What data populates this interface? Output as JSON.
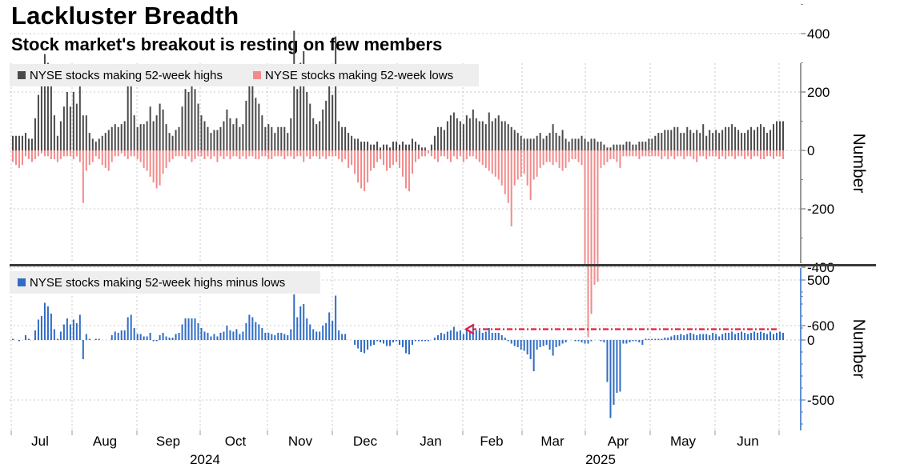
{
  "title": "Lackluster Breadth",
  "subtitle": "Stock market's breakout is resting on few members",
  "colors": {
    "highs": "#4a4a4a",
    "lows": "#f28b8b",
    "net": "#2f6cc4",
    "arrow": "#e8193c",
    "grid": "#c8c8c8",
    "divider": "#3a3a3a"
  },
  "x_axis": {
    "months": [
      "Jul",
      "Aug",
      "Sep",
      "Oct",
      "Nov",
      "Dec",
      "Jan",
      "Feb",
      "Mar",
      "Apr",
      "May",
      "Jun"
    ],
    "years": [
      "2024",
      "2025"
    ]
  },
  "chart_data": [
    {
      "type": "bar",
      "panel": "top",
      "ylabel": "Number",
      "ylim": [
        -700,
        600
      ],
      "yticks": [
        400,
        200,
        0,
        -200,
        -400,
        -600
      ],
      "legend_position": "top-left",
      "grid": true,
      "x_start": "2024-06-24",
      "x_end": "2025-06-27",
      "series": [
        {
          "name": "NYSE stocks making 52-week highs",
          "values": [
            50,
            50,
            50,
            50,
            60,
            40,
            40,
            110,
            190,
            230,
            330,
            300,
            250,
            120,
            50,
            100,
            150,
            200,
            150,
            200,
            160,
            250,
            120,
            120,
            60,
            40,
            30,
            40,
            50,
            60,
            70,
            80,
            90,
            80,
            90,
            100,
            220,
            230,
            120,
            80,
            90,
            90,
            100,
            150,
            100,
            120,
            160,
            140,
            90,
            60,
            50,
            70,
            80,
            150,
            210,
            200,
            220,
            210,
            160,
            120,
            100,
            80,
            60,
            70,
            70,
            80,
            100,
            140,
            110,
            90,
            110,
            80,
            90,
            170,
            230,
            220,
            180,
            160,
            120,
            80,
            90,
            80,
            60,
            80,
            80,
            80,
            60,
            110,
            410,
            210,
            300,
            340,
            200,
            160,
            110,
            90,
            100,
            140,
            170,
            250,
            190,
            390,
            100,
            80,
            80,
            60,
            50,
            40,
            40,
            30,
            30,
            30,
            20,
            20,
            30,
            10,
            20,
            20,
            10,
            30,
            30,
            20,
            30,
            20,
            20,
            40,
            30,
            20,
            10,
            10,
            0,
            20,
            50,
            80,
            80,
            70,
            100,
            120,
            130,
            110,
            100,
            90,
            120,
            110,
            140,
            110,
            100,
            100,
            90,
            130,
            100,
            110,
            120,
            100,
            100,
            90,
            80,
            70,
            60,
            50,
            40,
            40,
            40,
            40,
            50,
            60,
            40,
            50,
            60,
            90,
            60,
            50,
            70,
            40,
            30,
            40,
            40,
            40,
            50,
            40,
            30,
            40,
            40,
            30,
            30,
            20,
            10,
            10,
            20,
            20,
            20,
            20,
            30,
            30,
            20,
            20,
            30,
            30,
            30,
            40,
            40,
            50,
            60,
            60,
            70,
            70,
            70,
            80,
            80,
            60,
            60,
            80,
            70,
            60,
            70,
            60,
            90,
            50,
            70,
            60,
            70,
            60,
            70,
            80,
            80,
            90,
            80,
            70,
            60,
            60,
            70,
            80,
            70,
            80,
            90,
            80,
            60,
            70,
            90,
            100,
            100,
            100
          ]
        },
        {
          "name": "NYSE stocks making 52-week lows",
          "values": [
            -40,
            -50,
            -60,
            -50,
            -20,
            -30,
            -40,
            -30,
            -20,
            -10,
            -20,
            -20,
            -30,
            -30,
            -40,
            -30,
            -20,
            -20,
            -20,
            -30,
            -20,
            -40,
            -180,
            -70,
            -50,
            -40,
            -20,
            -30,
            -50,
            -60,
            -70,
            -40,
            -20,
            -20,
            -10,
            -20,
            -30,
            -20,
            -20,
            -30,
            -40,
            -60,
            -70,
            -90,
            -110,
            -130,
            -120,
            -80,
            -60,
            -40,
            -30,
            -20,
            -20,
            -20,
            -30,
            -20,
            -40,
            -30,
            -20,
            -20,
            -30,
            -20,
            -30,
            -20,
            -40,
            -20,
            -30,
            -20,
            -30,
            -20,
            -20,
            -30,
            -20,
            -30,
            -20,
            -20,
            -30,
            -30,
            -20,
            -20,
            -30,
            -30,
            -20,
            -20,
            -20,
            -30,
            -20,
            -20,
            -30,
            -20,
            -20,
            -40,
            -20,
            -30,
            -20,
            -20,
            -30,
            -20,
            -30,
            -20,
            -20,
            -20,
            -30,
            -40,
            -30,
            -60,
            -50,
            -80,
            -110,
            -130,
            -140,
            -110,
            -70,
            -60,
            -40,
            -30,
            -50,
            -70,
            -60,
            -50,
            -40,
            -60,
            -90,
            -130,
            -140,
            -80,
            -40,
            -30,
            -20,
            -20,
            -10,
            -20,
            -30,
            -40,
            -20,
            -20,
            -30,
            -40,
            -20,
            -30,
            -20,
            -40,
            -30,
            -20,
            -20,
            -30,
            -40,
            -50,
            -60,
            -70,
            -80,
            -90,
            -100,
            -120,
            -150,
            -180,
            -260,
            -120,
            -100,
            -90,
            -80,
            -120,
            -170,
            -100,
            -90,
            -60,
            -50,
            -40,
            -40,
            -50,
            -40,
            -60,
            -70,
            -60,
            -40,
            -30,
            -30,
            -40,
            -50,
            -390,
            -640,
            -560,
            -460,
            -450,
            -60,
            -50,
            -40,
            -30,
            -30,
            -40,
            -60,
            -20,
            -20,
            -20,
            -20,
            -20,
            -30,
            -20,
            -20,
            -20,
            -20,
            -20,
            -20,
            -30,
            -20,
            -30,
            -20,
            -30,
            -20,
            -20,
            -30,
            -20,
            -20,
            -30,
            -40,
            -20,
            -20,
            -30,
            -20,
            -20,
            -20,
            -30,
            -20,
            -30,
            -20,
            -20,
            -30,
            -20,
            -20,
            -30,
            -20,
            -30,
            -20,
            -20,
            -30,
            -30,
            -20,
            -20,
            -30,
            -20,
            -20,
            -30,
            -20,
            -20,
            -30,
            -10,
            -10
          ]
        }
      ]
    },
    {
      "type": "bar",
      "panel": "bottom",
      "ylabel": "Number",
      "ylim": [
        -750,
        550
      ],
      "yticks": [
        500,
        0,
        -500
      ],
      "legend_position": "top-left",
      "grid": true,
      "series": [
        {
          "name": "NYSE stocks making 52-week highs minus lows",
          "values": [
            10,
            0,
            -10,
            0,
            40,
            10,
            0,
            80,
            170,
            200,
            310,
            280,
            220,
            90,
            10,
            70,
            130,
            180,
            130,
            170,
            140,
            210,
            -160,
            50,
            10,
            0,
            10,
            10,
            0,
            0,
            0,
            40,
            70,
            60,
            80,
            80,
            190,
            210,
            100,
            50,
            50,
            30,
            30,
            60,
            -10,
            -10,
            40,
            60,
            30,
            20,
            20,
            50,
            60,
            130,
            180,
            180,
            180,
            180,
            140,
            100,
            70,
            60,
            30,
            50,
            30,
            60,
            70,
            120,
            80,
            70,
            90,
            50,
            70,
            140,
            210,
            190,
            150,
            130,
            100,
            60,
            60,
            50,
            40,
            60,
            60,
            50,
            40,
            90,
            380,
            190,
            280,
            300,
            180,
            130,
            90,
            70,
            70,
            120,
            140,
            230,
            160,
            370,
            80,
            50,
            50,
            0,
            0,
            -40,
            -70,
            -100,
            -110,
            -80,
            -50,
            -40,
            -10,
            -20,
            -30,
            -50,
            -50,
            -20,
            -10,
            -40,
            -60,
            -110,
            -120,
            -40,
            -10,
            -10,
            -10,
            -10,
            -10,
            0,
            20,
            40,
            60,
            50,
            70,
            80,
            110,
            70,
            80,
            50,
            100,
            70,
            120,
            80,
            80,
            60,
            70,
            100,
            60,
            60,
            60,
            40,
            20,
            -10,
            -30,
            -50,
            -60,
            -80,
            -90,
            -120,
            -160,
            -260,
            -80,
            -60,
            -50,
            -40,
            -80,
            -130,
            -60,
            -50,
            -30,
            -20,
            0,
            0,
            -10,
            -10,
            -20,
            -30,
            -30,
            -10,
            0,
            0,
            -10,
            -20,
            -350,
            -650,
            -540,
            -440,
            -430,
            -30,
            -30,
            -20,
            -10,
            -10,
            -20,
            -40,
            10,
            10,
            10,
            10,
            10,
            10,
            20,
            20,
            30,
            40,
            40,
            50,
            40,
            50,
            60,
            50,
            40,
            50,
            50,
            50,
            40,
            60,
            50,
            30,
            50,
            60,
            60,
            70,
            50,
            60,
            70,
            60,
            50,
            60,
            70,
            60,
            70,
            60,
            50,
            70,
            50,
            60,
            70,
            60,
            60,
            70,
            60,
            60,
            80,
            90,
            80,
            80,
            90,
            90
          ]
        }
      ],
      "annotations": [
        {
          "type": "arrow",
          "description": "dashed reference arrow pointing left at current level",
          "from_date": "2025-06-24",
          "to_date": "2025-01-15",
          "y": 90
        }
      ]
    }
  ]
}
